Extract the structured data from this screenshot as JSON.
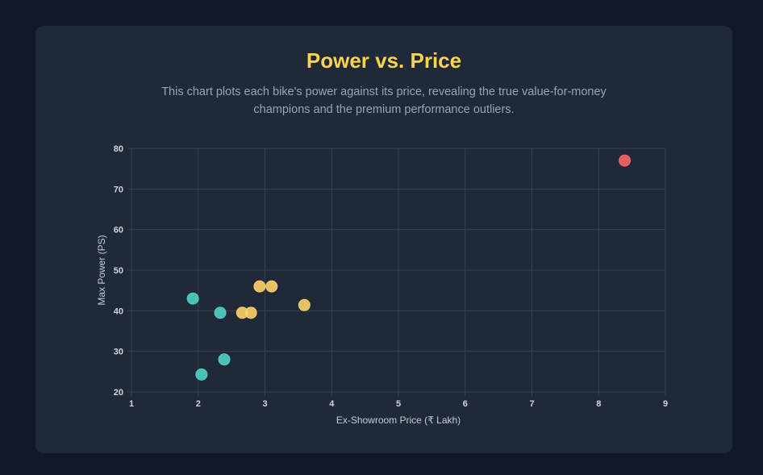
{
  "header": {
    "title": "Power vs. Price",
    "subtitle": "This chart plots each bike's power against its price, revealing the true value-for-money champions and the premium performance outliers."
  },
  "colors": {
    "background": "#111827",
    "card": "#1f2937",
    "title": "#fcd34d",
    "grid": "#374151",
    "teal": "#4fd1c5",
    "amber": "#fcd06a",
    "red": "#f56565"
  },
  "chart_data": {
    "type": "scatter",
    "title": "",
    "xlabel": "Ex-Showroom Price (₹ Lakh)",
    "ylabel": "Max Power (PS)",
    "xlim": [
      1,
      9
    ],
    "ylim": [
      20,
      80
    ],
    "x_ticks": [
      1,
      2,
      3,
      4,
      5,
      6,
      7,
      8,
      9
    ],
    "y_ticks": [
      20,
      30,
      40,
      50,
      60,
      70,
      80
    ],
    "grid": true,
    "legend": "none",
    "points": [
      {
        "x": 1.92,
        "y": 43.0,
        "color": "#4fd1c5"
      },
      {
        "x": 2.33,
        "y": 39.5,
        "color": "#4fd1c5"
      },
      {
        "x": 2.39,
        "y": 28.0,
        "color": "#4fd1c5"
      },
      {
        "x": 2.05,
        "y": 24.3,
        "color": "#4fd1c5"
      },
      {
        "x": 2.66,
        "y": 39.5,
        "color": "#fcd06a"
      },
      {
        "x": 2.79,
        "y": 39.5,
        "color": "#fcd06a"
      },
      {
        "x": 2.92,
        "y": 46.0,
        "color": "#fcd06a"
      },
      {
        "x": 3.1,
        "y": 46.0,
        "color": "#fcd06a"
      },
      {
        "x": 3.59,
        "y": 41.4,
        "color": "#fcd06a"
      },
      {
        "x": 8.39,
        "y": 77.0,
        "color": "#f56565"
      }
    ]
  }
}
